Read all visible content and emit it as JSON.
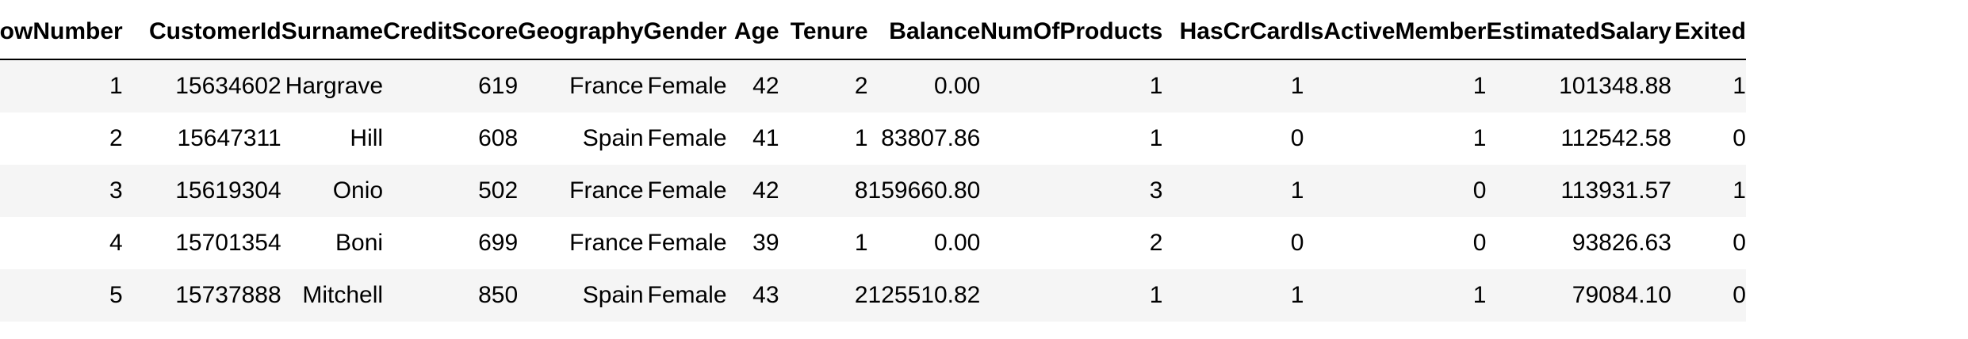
{
  "table": {
    "columns": [
      "RowNumber",
      "CustomerId",
      "Surname",
      "CreditScore",
      "Geography",
      "Gender",
      "Age",
      "Tenure",
      "Balance",
      "NumOfProducts",
      "HasCrCard",
      "IsActiveMember",
      "EstimatedSalary",
      "Exited"
    ],
    "rows": [
      [
        "1",
        "15634602",
        "Hargrave",
        "619",
        "France",
        "Female",
        "42",
        "2",
        "0.00",
        "1",
        "1",
        "1",
        "101348.88",
        "1"
      ],
      [
        "2",
        "15647311",
        "Hill",
        "608",
        "Spain",
        "Female",
        "41",
        "1",
        "83807.86",
        "1",
        "0",
        "1",
        "112542.58",
        "0"
      ],
      [
        "3",
        "15619304",
        "Onio",
        "502",
        "France",
        "Female",
        "42",
        "8",
        "159660.80",
        "3",
        "1",
        "0",
        "113931.57",
        "1"
      ],
      [
        "4",
        "15701354",
        "Boni",
        "699",
        "France",
        "Female",
        "39",
        "1",
        "0.00",
        "2",
        "0",
        "0",
        "93826.63",
        "0"
      ],
      [
        "5",
        "15737888",
        "Mitchell",
        "850",
        "Spain",
        "Female",
        "43",
        "2",
        "125510.82",
        "1",
        "1",
        "1",
        "79084.10",
        "0"
      ]
    ]
  }
}
